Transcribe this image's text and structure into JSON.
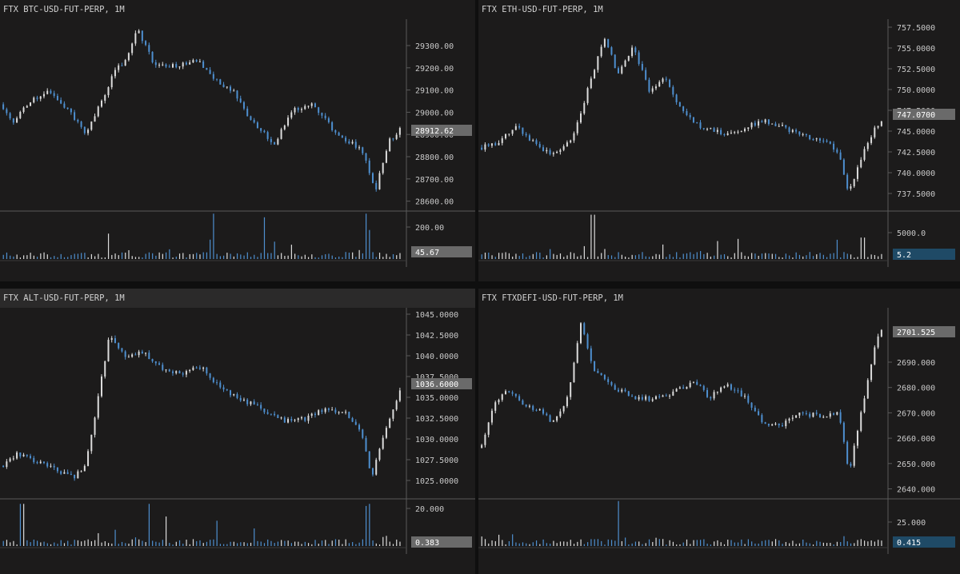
{
  "colors": {
    "up": "#dcdcdc",
    "down": "#4e8fcf",
    "axis": "#5a5a5a",
    "tick": "#c8c8c8",
    "badge_gray": "#6a6a6a",
    "badge_blue": "#1f4a66"
  },
  "charts": [
    {
      "title": "FTX BTC-USD-FUT-PERP, 1M",
      "price_label": "28912.62",
      "volume_label": "45.67",
      "volume_badge": "gray",
      "price_ticks": [
        "29300.00",
        "29200.00",
        "29100.00",
        "29000.00",
        "28900.00",
        "28800.00",
        "28700.00",
        "28600.00"
      ],
      "volume_ticks": [
        "200.00"
      ]
    },
    {
      "title": "FTX ETH-USD-FUT-PERP, 1M",
      "price_label": "747.0700",
      "volume_label": "5.2",
      "volume_badge": "blue",
      "price_ticks": [
        "757.5000",
        "755.0000",
        "752.5000",
        "750.0000",
        "747.5000",
        "745.0000",
        "742.5000",
        "740.0000",
        "737.5000"
      ],
      "volume_ticks": [
        "5000.0"
      ]
    },
    {
      "title": "FTX ALT-USD-FUT-PERP, 1M",
      "price_label": "1036.6000",
      "volume_label": "0.383",
      "volume_badge": "gray",
      "price_ticks": [
        "1045.0000",
        "1042.5000",
        "1040.0000",
        "1037.5000",
        "1035.0000",
        "1032.5000",
        "1030.0000",
        "1027.5000",
        "1025.0000"
      ],
      "volume_ticks": [
        "20.000"
      ]
    },
    {
      "title": "FTX FTXDEFI-USD-FUT-PERP, 1M",
      "price_label": "2701.525",
      "volume_label": "0.415",
      "volume_badge": "blue",
      "price_ticks": [
        "2690.000",
        "2680.000",
        "2670.000",
        "2660.000",
        "2650.000",
        "2640.000"
      ],
      "volume_ticks": [
        "25.000"
      ]
    }
  ],
  "chart_data": [
    {
      "type": "line",
      "title": "FTX BTC-USD-FUT-PERP, 1M",
      "ylim": [
        28550,
        29390
      ],
      "volume_max": 260,
      "path": [
        [
          0,
          29020
        ],
        [
          0.03,
          28940
        ],
        [
          0.07,
          29030
        ],
        [
          0.11,
          29080
        ],
        [
          0.16,
          29010
        ],
        [
          0.21,
          28890
        ],
        [
          0.25,
          29030
        ],
        [
          0.28,
          29160
        ],
        [
          0.31,
          29220
        ],
        [
          0.34,
          29360
        ],
        [
          0.38,
          29200
        ],
        [
          0.43,
          29190
        ],
        [
          0.49,
          29220
        ],
        [
          0.54,
          29120
        ],
        [
          0.58,
          29080
        ],
        [
          0.62,
          28960
        ],
        [
          0.68,
          28840
        ],
        [
          0.73,
          29000
        ],
        [
          0.78,
          29020
        ],
        [
          0.84,
          28880
        ],
        [
          0.9,
          28820
        ],
        [
          0.935,
          28640
        ],
        [
          0.97,
          28860
        ],
        [
          1.0,
          28912.62
        ]
      ],
      "vol_spikes": [
        [
          0.27,
          140
        ],
        [
          0.53,
          250
        ],
        [
          0.66,
          230
        ],
        [
          0.91,
          250
        ],
        [
          0.92,
          160
        ]
      ]
    },
    {
      "type": "line",
      "title": "FTX ETH-USD-FUT-PERP, 1M",
      "ylim": [
        736.0,
        758.8
      ],
      "volume_max": 6600,
      "path": [
        [
          0,
          743.5
        ],
        [
          0.04,
          744.0
        ],
        [
          0.09,
          746.0
        ],
        [
          0.14,
          743.8
        ],
        [
          0.18,
          742.5
        ],
        [
          0.23,
          744.5
        ],
        [
          0.27,
          751.0
        ],
        [
          0.31,
          757.0
        ],
        [
          0.34,
          752.5
        ],
        [
          0.38,
          755.8
        ],
        [
          0.42,
          750.5
        ],
        [
          0.46,
          752.0
        ],
        [
          0.5,
          748.0
        ],
        [
          0.55,
          746.0
        ],
        [
          0.6,
          745.2
        ],
        [
          0.65,
          745.8
        ],
        [
          0.7,
          746.8
        ],
        [
          0.75,
          746.0
        ],
        [
          0.8,
          745.0
        ],
        [
          0.86,
          744.3
        ],
        [
          0.89,
          743.0
        ],
        [
          0.915,
          738.0
        ],
        [
          0.95,
          743.0
        ],
        [
          0.98,
          746.0
        ],
        [
          1.0,
          747.07
        ]
      ],
      "vol_spikes": [
        [
          0.28,
          6200
        ],
        [
          0.26,
          1800
        ],
        [
          0.31,
          1400
        ],
        [
          0.95,
          3000
        ]
      ]
    },
    {
      "type": "line",
      "title": "FTX ALT-USD-FUT-PERP, 1M",
      "ylim": [
        1023.0,
        1046.3
      ],
      "volume_max": 22,
      "path": [
        [
          0,
          1027.0
        ],
        [
          0.04,
          1028.5
        ],
        [
          0.09,
          1027.5
        ],
        [
          0.14,
          1026.5
        ],
        [
          0.18,
          1025.5
        ],
        [
          0.21,
          1027.0
        ],
        [
          0.24,
          1035.0
        ],
        [
          0.27,
          1043.5
        ],
        [
          0.31,
          1040.5
        ],
        [
          0.35,
          1041.2
        ],
        [
          0.4,
          1039.0
        ],
        [
          0.45,
          1038.5
        ],
        [
          0.5,
          1039.2
        ],
        [
          0.55,
          1036.5
        ],
        [
          0.61,
          1035.0
        ],
        [
          0.66,
          1033.8
        ],
        [
          0.71,
          1032.5
        ],
        [
          0.76,
          1032.8
        ],
        [
          0.81,
          1034.2
        ],
        [
          0.86,
          1033.5
        ],
        [
          0.9,
          1031.0
        ],
        [
          0.925,
          1025.5
        ],
        [
          0.96,
          1031.5
        ],
        [
          1.0,
          1036.6
        ]
      ],
      "vol_spikes": [
        [
          0.05,
          20
        ],
        [
          0.37,
          20
        ],
        [
          0.41,
          14
        ],
        [
          0.54,
          12
        ],
        [
          0.91,
          19
        ],
        [
          0.92,
          20
        ]
      ]
    },
    {
      "type": "line",
      "title": "FTX FTXDEFI-USD-FUT-PERP, 1M",
      "ylim": [
        2636.0,
        2707.0
      ],
      "volume_max": 33,
      "path": [
        [
          0,
          2655.0
        ],
        [
          0.04,
          2673.0
        ],
        [
          0.07,
          2677.0
        ],
        [
          0.11,
          2671.0
        ],
        [
          0.15,
          2669.0
        ],
        [
          0.18,
          2664.0
        ],
        [
          0.22,
          2675.0
        ],
        [
          0.25,
          2702.0
        ],
        [
          0.28,
          2685.0
        ],
        [
          0.33,
          2678.0
        ],
        [
          0.38,
          2674.0
        ],
        [
          0.43,
          2673.5
        ],
        [
          0.48,
          2676.0
        ],
        [
          0.53,
          2680.0
        ],
        [
          0.57,
          2674.0
        ],
        [
          0.61,
          2679.0
        ],
        [
          0.66,
          2674.0
        ],
        [
          0.71,
          2663.0
        ],
        [
          0.75,
          2664.0
        ],
        [
          0.79,
          2668.0
        ],
        [
          0.85,
          2667.0
        ],
        [
          0.89,
          2668.0
        ],
        [
          0.915,
          2645.0
        ],
        [
          0.95,
          2672.0
        ],
        [
          0.98,
          2694.0
        ],
        [
          1.0,
          2701.525
        ]
      ],
      "vol_spikes": [
        [
          0.34,
          32
        ],
        [
          0.36,
          6
        ],
        [
          0.45,
          5
        ],
        [
          0.9,
          7
        ]
      ]
    }
  ]
}
